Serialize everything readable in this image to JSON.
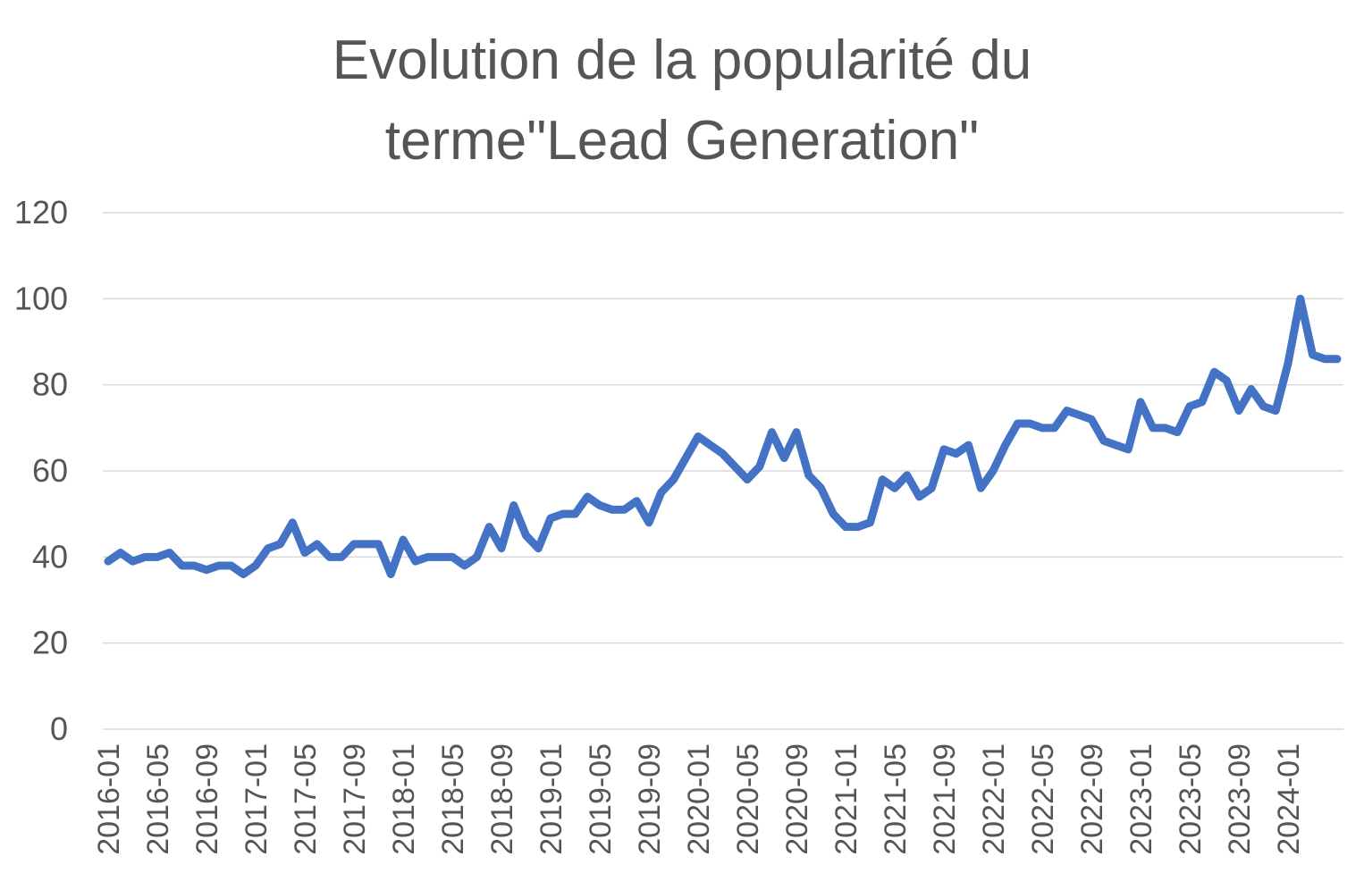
{
  "chart_data": {
    "type": "line",
    "title": "Evolution de la popularité du terme\"Lead Generation\"",
    "title_lines": [
      "Evolution de la popularité du",
      "terme\"Lead Generation\""
    ],
    "xlabel": "",
    "ylabel": "",
    "ylim": [
      0,
      120
    ],
    "yticks": [
      0,
      20,
      40,
      60,
      80,
      100,
      120
    ],
    "grid": true,
    "legend": "none",
    "xtick_labels": [
      "2016-01",
      "2016-05",
      "2016-09",
      "2017-01",
      "2017-05",
      "2017-09",
      "2018-01",
      "2018-05",
      "2018-09",
      "2019-01",
      "2019-05",
      "2019-09",
      "2020-01",
      "2020-05",
      "2020-09",
      "2021-01",
      "2021-05",
      "2021-09",
      "2022-01",
      "2022-05",
      "2022-09",
      "2023-01",
      "2023-05",
      "2023-09",
      "2024-01"
    ],
    "x": [
      "2016-01",
      "2016-02",
      "2016-03",
      "2016-04",
      "2016-05",
      "2016-06",
      "2016-07",
      "2016-08",
      "2016-09",
      "2016-10",
      "2016-11",
      "2016-12",
      "2017-01",
      "2017-02",
      "2017-03",
      "2017-04",
      "2017-05",
      "2017-06",
      "2017-07",
      "2017-08",
      "2017-09",
      "2017-10",
      "2017-11",
      "2017-12",
      "2018-01",
      "2018-02",
      "2018-03",
      "2018-04",
      "2018-05",
      "2018-06",
      "2018-07",
      "2018-08",
      "2018-09",
      "2018-10",
      "2018-11",
      "2018-12",
      "2019-01",
      "2019-02",
      "2019-03",
      "2019-04",
      "2019-05",
      "2019-06",
      "2019-07",
      "2019-08",
      "2019-09",
      "2019-10",
      "2019-11",
      "2019-12",
      "2020-01",
      "2020-02",
      "2020-03",
      "2020-04",
      "2020-05",
      "2020-06",
      "2020-07",
      "2020-08",
      "2020-09",
      "2020-10",
      "2020-11",
      "2020-12",
      "2021-01",
      "2021-02",
      "2021-03",
      "2021-04",
      "2021-05",
      "2021-06",
      "2021-07",
      "2021-08",
      "2021-09",
      "2021-10",
      "2021-11",
      "2021-12",
      "2022-01",
      "2022-02",
      "2022-03",
      "2022-04",
      "2022-05",
      "2022-06",
      "2022-07",
      "2022-08",
      "2022-09",
      "2022-10",
      "2022-11",
      "2022-12",
      "2023-01",
      "2023-02",
      "2023-03",
      "2023-04",
      "2023-05",
      "2023-06",
      "2023-07",
      "2023-08",
      "2023-09",
      "2023-10",
      "2023-11",
      "2023-12",
      "2024-01",
      "2024-02",
      "2024-03",
      "2024-04",
      "2024-05"
    ],
    "series": [
      {
        "name": "Lead Generation",
        "color": "#4472c4",
        "values": [
          39,
          41,
          39,
          40,
          40,
          41,
          38,
          38,
          37,
          38,
          38,
          36,
          38,
          42,
          43,
          48,
          41,
          43,
          40,
          40,
          43,
          43,
          43,
          36,
          44,
          39,
          40,
          40,
          40,
          38,
          40,
          47,
          42,
          52,
          45,
          42,
          49,
          50,
          50,
          54,
          52,
          51,
          51,
          53,
          48,
          55,
          58,
          63,
          68,
          66,
          64,
          61,
          58,
          61,
          69,
          63,
          69,
          59,
          56,
          50,
          47,
          47,
          48,
          58,
          56,
          59,
          54,
          56,
          65,
          64,
          66,
          56,
          60,
          66,
          71,
          71,
          70,
          70,
          74,
          73,
          72,
          67,
          66,
          65,
          76,
          70,
          70,
          69,
          75,
          76,
          83,
          81,
          74,
          79,
          75,
          74,
          85,
          100,
          87,
          86,
          86
        ]
      }
    ]
  }
}
